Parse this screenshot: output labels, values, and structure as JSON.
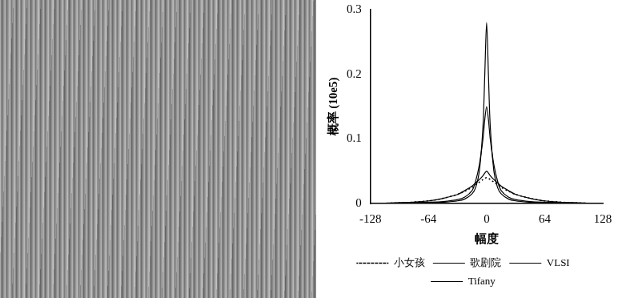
{
  "chart_data": {
    "type": "line",
    "x_label": "幅度",
    "y_label": "概率 (10e5)",
    "x": [
      -128,
      -96,
      -64,
      -48,
      -32,
      -24,
      -16,
      -12,
      -8,
      -4,
      -2,
      0,
      2,
      4,
      8,
      12,
      16,
      24,
      32,
      48,
      64,
      96,
      128
    ],
    "series": [
      {
        "name": "小女孩",
        "color": "#000000",
        "line_style": "dotted",
        "values": [
          0,
          0.001,
          0.004,
          0.008,
          0.014,
          0.019,
          0.025,
          0.029,
          0.033,
          0.037,
          0.039,
          0.04,
          0.039,
          0.037,
          0.033,
          0.029,
          0.025,
          0.019,
          0.014,
          0.008,
          0.004,
          0.001,
          0
        ]
      },
      {
        "name": "歌剧院",
        "color": "#000000",
        "line_style": "solid",
        "values": [
          0,
          0.001,
          0.004,
          0.008,
          0.014,
          0.02,
          0.027,
          0.032,
          0.037,
          0.043,
          0.047,
          0.05,
          0.047,
          0.043,
          0.037,
          0.032,
          0.027,
          0.02,
          0.014,
          0.008,
          0.004,
          0.001,
          0
        ]
      },
      {
        "name": "VLSI",
        "color": "#000000",
        "line_style": "solid",
        "values": [
          0,
          0,
          0.001,
          0.002,
          0.004,
          0.007,
          0.015,
          0.025,
          0.05,
          0.12,
          0.2,
          0.28,
          0.2,
          0.12,
          0.05,
          0.025,
          0.015,
          0.007,
          0.004,
          0.002,
          0.001,
          0,
          0
        ]
      },
      {
        "name": "Tifany",
        "color": "#000000",
        "line_style": "solid",
        "values": [
          0,
          0.001,
          0.002,
          0.003,
          0.006,
          0.01,
          0.02,
          0.035,
          0.06,
          0.1,
          0.13,
          0.15,
          0.13,
          0.1,
          0.06,
          0.035,
          0.02,
          0.01,
          0.006,
          0.003,
          0.002,
          0.001,
          0
        ]
      }
    ],
    "xlim": [
      -128,
      128
    ],
    "xticks": [
      -128,
      -64,
      0,
      64,
      128
    ],
    "ylim": [
      0,
      0.3
    ],
    "yticks": [
      0,
      0.1,
      0.2,
      0.3
    ],
    "grid": false,
    "legend": "bottom"
  }
}
